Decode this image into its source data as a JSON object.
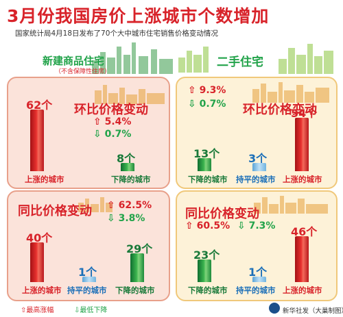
{
  "header": {
    "title": "3月份我国房价上涨城市个数增加",
    "subtitle": "国家统计局4月18日发布了70个大中城市住宅销售价格变动情况"
  },
  "sections": {
    "new": {
      "title": "新建商品住宅",
      "note": "（不含保障性住房）"
    },
    "second": {
      "title": "二手住宅"
    }
  },
  "labels": {
    "mom": "环比价格变动",
    "yoy": "同比价格变动",
    "rise": "上涨的城市",
    "fall": "下降的城市",
    "flat": "持平的城市",
    "legend_up": "最高涨幅",
    "legend_down": "最低下降",
    "source": "新华社发（大巢制图）"
  },
  "chart_data": [
    {
      "type": "bar",
      "panel": "新建商品住宅 环比价格变动",
      "categories": [
        "上涨的城市",
        "下降的城市"
      ],
      "values": [
        62,
        8
      ],
      "value_labels": [
        "62个",
        "8个"
      ],
      "max_rise": "5.4%",
      "min_fall": "0.7%"
    },
    {
      "type": "bar",
      "panel": "新建商品住宅 同比价格变动",
      "categories": [
        "上涨的城市",
        "持平的城市",
        "下降的城市"
      ],
      "values": [
        40,
        1,
        29
      ],
      "value_labels": [
        "40个",
        "1个",
        "29个"
      ],
      "max_rise": "62.5%",
      "min_fall": "3.8%"
    },
    {
      "type": "bar",
      "panel": "二手住宅 环比价格变动",
      "categories": [
        "下降的城市",
        "持平的城市",
        "上涨的城市"
      ],
      "values": [
        13,
        3,
        54
      ],
      "value_labels": [
        "13个",
        "3个",
        "54个"
      ],
      "max_rise": "9.3%",
      "min_fall": "0.7%"
    },
    {
      "type": "bar",
      "panel": "二手住宅 同比价格变动",
      "categories": [
        "下降的城市",
        "持平的城市",
        "上涨的城市"
      ],
      "values": [
        23,
        1,
        46
      ],
      "value_labels": [
        "23个",
        "1个",
        "46个"
      ],
      "max_rise": "60.5%",
      "min_fall": "7.3%"
    }
  ],
  "colors": {
    "rise": "#d8232a",
    "fall": "#22a34a",
    "flat": "#1b6fb8"
  }
}
